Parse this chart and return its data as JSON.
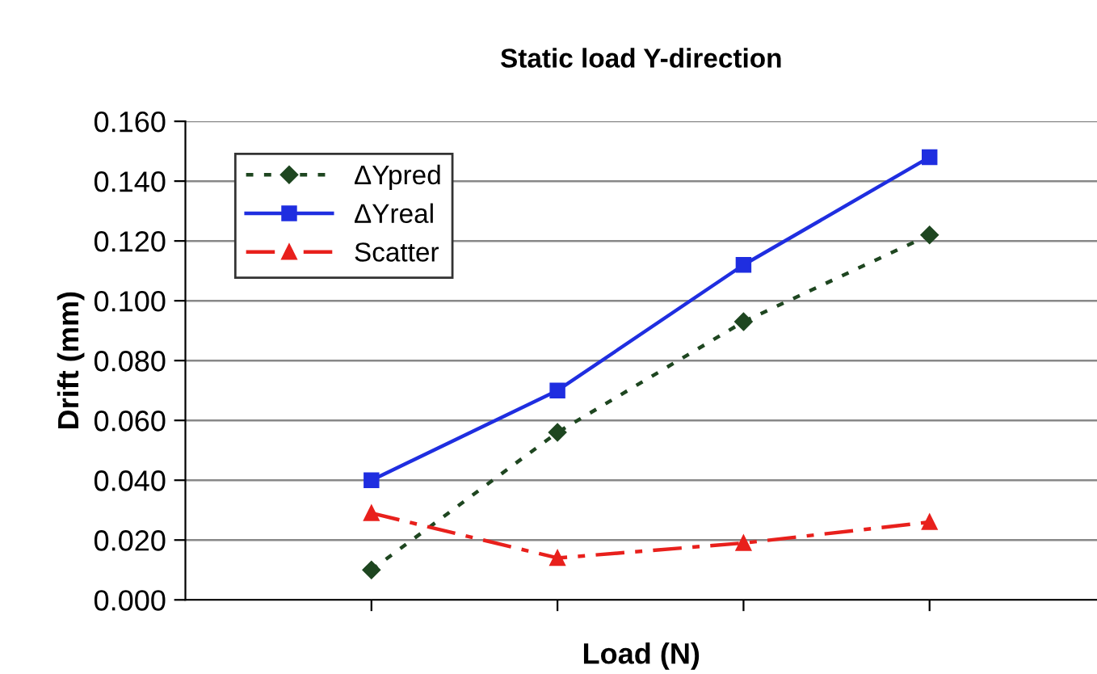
{
  "chart_data": {
    "type": "line",
    "title": "Static load Y-direction",
    "xlabel": "Load (N)",
    "ylabel": "Drift (mm)",
    "categories": [
      null,
      null,
      null,
      null
    ],
    "series": [
      {
        "name": "ΔYpred",
        "color": "#1e4620",
        "values": [
          0.01,
          0.056,
          0.093,
          0.122
        ],
        "marker": "diamond",
        "line_style": "dotted"
      },
      {
        "name": "ΔYreal",
        "color": "#1f2ee0",
        "values": [
          0.04,
          0.07,
          0.112,
          0.148
        ],
        "marker": "square",
        "line_style": "solid"
      },
      {
        "name": "Scatter",
        "color": "#e8201c",
        "values": [
          0.029,
          0.014,
          0.019,
          0.026
        ],
        "marker": "triangle",
        "line_style": "dashed"
      }
    ],
    "ylim": [
      0,
      0.16
    ],
    "yticks": [
      {
        "value": 0,
        "label": "0.000"
      },
      {
        "value": 0.02,
        "label": "0.020"
      },
      {
        "value": 0.04,
        "label": "0.040"
      },
      {
        "value": 0.06,
        "label": "0.060"
      },
      {
        "value": 0.08,
        "label": "0.080"
      },
      {
        "value": 0.1,
        "label": "0.100"
      },
      {
        "value": 0.12,
        "label": "0.120"
      },
      {
        "value": 0.14,
        "label": "0.140"
      },
      {
        "value": 0.16,
        "label": "0.160"
      }
    ],
    "tick_labels": "y",
    "grid": "y",
    "legend": "top left"
  }
}
